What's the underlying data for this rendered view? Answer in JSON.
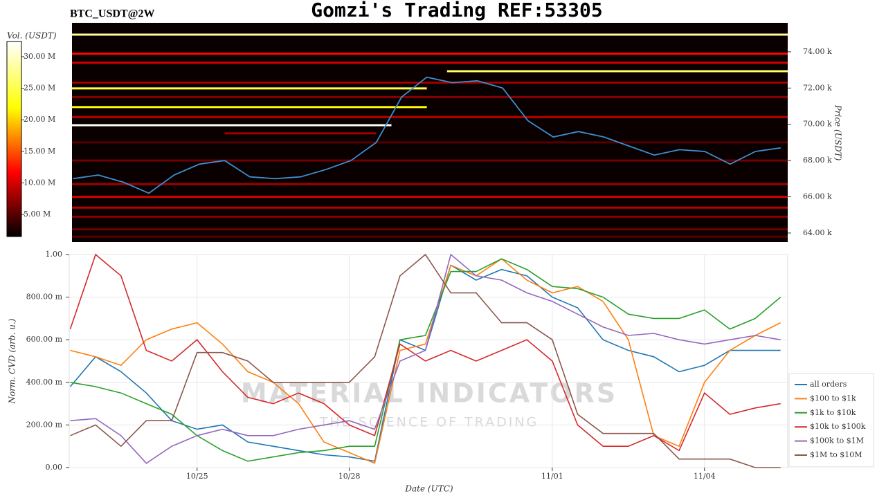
{
  "chart_data": [
    {
      "type": "heatmap",
      "title": "Gomzi's Trading REF:53305",
      "subtitle": "BTC_USDT@2W",
      "y_label": "Price (USDT)",
      "colorbar_label": "Vol. (USDT)",
      "xlim": [
        22.48,
        36.64
      ],
      "ylim": [
        63500,
        75600
      ],
      "yticks": [
        {
          "value": 64000,
          "label": "64.00 k"
        },
        {
          "value": 66000,
          "label": "66.00 k"
        },
        {
          "value": 68000,
          "label": "68.00 k"
        },
        {
          "value": 70000,
          "label": "70.00 k"
        },
        {
          "value": 72000,
          "label": "72.00 k"
        },
        {
          "value": 74000,
          "label": "74.00 k"
        }
      ],
      "clim": [
        1500000,
        32400000
      ],
      "cticks": [
        {
          "value": 5000000,
          "label": "5.00 M"
        },
        {
          "value": 10000000,
          "label": "10.00 M"
        },
        {
          "value": 15000000,
          "label": "15.00 M"
        },
        {
          "value": 20000000,
          "label": "20.00 M"
        },
        {
          "value": 25000000,
          "label": "25.00 M"
        },
        {
          "value": 30000000,
          "label": "30.00 M"
        }
      ],
      "levels": [
        {
          "price": 74950,
          "volume": 28000000,
          "start": 22.48,
          "end": 36.64
        },
        {
          "price": 73900,
          "volume": 12000000,
          "start": 22.48,
          "end": 36.64
        },
        {
          "price": 73400,
          "volume": 10000000,
          "start": 22.48,
          "end": 36.64
        },
        {
          "price": 72930,
          "volume": 26000000,
          "start": 29.9,
          "end": 36.64
        },
        {
          "price": 72300,
          "volume": 8000000,
          "start": 22.48,
          "end": 36.64
        },
        {
          "price": 71980,
          "volume": 25000000,
          "start": 22.48,
          "end": 29.5
        },
        {
          "price": 71500,
          "volume": 7000000,
          "start": 22.48,
          "end": 36.64
        },
        {
          "price": 70950,
          "volume": 22000000,
          "start": 22.48,
          "end": 29.5
        },
        {
          "price": 70400,
          "volume": 9000000,
          "start": 22.48,
          "end": 36.64
        },
        {
          "price": 69950,
          "volume": 32000000,
          "start": 22.48,
          "end": 28.8
        },
        {
          "price": 69500,
          "volume": 8000000,
          "start": 25.5,
          "end": 28.5
        },
        {
          "price": 69000,
          "volume": 5000000,
          "start": 22.48,
          "end": 36.64
        },
        {
          "price": 68000,
          "volume": 6000000,
          "start": 22.48,
          "end": 36.64
        },
        {
          "price": 66700,
          "volume": 8000000,
          "start": 22.48,
          "end": 36.64
        },
        {
          "price": 66000,
          "volume": 10000000,
          "start": 22.48,
          "end": 36.64
        },
        {
          "price": 65400,
          "volume": 9000000,
          "start": 22.48,
          "end": 36.64
        },
        {
          "price": 64900,
          "volume": 7000000,
          "start": 22.48,
          "end": 36.64
        },
        {
          "price": 64200,
          "volume": 6000000,
          "start": 22.48,
          "end": 36.64
        },
        {
          "price": 63800,
          "volume": 5000000,
          "start": 22.48,
          "end": 36.64
        }
      ],
      "price_color": "#3a8fd0",
      "x": [
        22.5,
        23,
        23.5,
        24,
        24.5,
        25,
        25.5,
        26,
        26.5,
        27,
        27.5,
        28,
        28.5,
        29,
        29.5,
        30,
        30.5,
        31,
        31.5,
        32,
        32.5,
        33,
        33.5,
        34,
        34.5,
        35,
        35.5,
        36,
        36.5
      ],
      "price": [
        67000,
        67200,
        66800,
        66200,
        67200,
        67800,
        68000,
        67100,
        67000,
        67100,
        67500,
        68000,
        69000,
        71500,
        72600,
        72300,
        72400,
        72000,
        70200,
        69300,
        69600,
        69300,
        68800,
        68300,
        68600,
        68500,
        67800,
        68500,
        68700
      ]
    },
    {
      "type": "line",
      "x_label": "Date (UTC)",
      "y_label": "Norm. CVD (arb. u.)",
      "watermark": "MATERIAL INDICATORS",
      "watermark_sub": "THE SCIENCE OF TRADING",
      "xlim": [
        22.48,
        36.64
      ],
      "ylim": [
        0,
        1
      ],
      "grid": true,
      "xticks": [
        {
          "value": 25,
          "label": "10/25"
        },
        {
          "value": 28,
          "label": "10/28"
        },
        {
          "value": 32,
          "label": "11/01"
        },
        {
          "value": 35,
          "label": "11/04"
        }
      ],
      "yticks": [
        {
          "value": 0,
          "label": "0.00"
        },
        {
          "value": 0.2,
          "label": "200.00 m"
        },
        {
          "value": 0.4,
          "label": "400.00 m"
        },
        {
          "value": 0.6,
          "label": "600.00 m"
        },
        {
          "value": 0.8,
          "label": "800.00 m"
        },
        {
          "value": 1,
          "label": "1.00"
        }
      ],
      "x": [
        22.5,
        23,
        23.5,
        24,
        24.5,
        25,
        25.5,
        26,
        26.5,
        27,
        27.5,
        28,
        28.5,
        29,
        29.5,
        30,
        30.5,
        31,
        31.5,
        32,
        32.5,
        33,
        33.5,
        34,
        34.5,
        35,
        35.5,
        36,
        36.5
      ],
      "series": [
        {
          "name": "all orders",
          "color": "#1f77b4",
          "values": [
            0.38,
            0.52,
            0.45,
            0.35,
            0.22,
            0.18,
            0.2,
            0.12,
            0.1,
            0.08,
            0.06,
            0.05,
            0.03,
            0.6,
            0.55,
            0.95,
            0.88,
            0.93,
            0.9,
            0.8,
            0.75,
            0.6,
            0.55,
            0.52,
            0.45,
            0.48,
            0.55,
            0.55,
            0.55
          ]
        },
        {
          "name": "$100 to $1k",
          "color": "#ff7f0e",
          "values": [
            0.55,
            0.52,
            0.48,
            0.6,
            0.65,
            0.68,
            0.58,
            0.45,
            0.4,
            0.3,
            0.12,
            0.07,
            0.02,
            0.55,
            0.58,
            0.95,
            0.9,
            0.98,
            0.88,
            0.82,
            0.85,
            0.78,
            0.6,
            0.15,
            0.1,
            0.4,
            0.55,
            0.62,
            0.68
          ]
        },
        {
          "name": "$1k to $10k",
          "color": "#2ca02c",
          "values": [
            0.4,
            0.38,
            0.35,
            0.3,
            0.25,
            0.15,
            0.08,
            0.03,
            0.05,
            0.07,
            0.08,
            0.1,
            0.1,
            0.6,
            0.62,
            0.92,
            0.92,
            0.98,
            0.93,
            0.85,
            0.84,
            0.8,
            0.72,
            0.7,
            0.7,
            0.74,
            0.65,
            0.7,
            0.8
          ]
        },
        {
          "name": "$10k to $100k",
          "color": "#d62728",
          "values": [
            0.65,
            1.0,
            0.9,
            0.55,
            0.5,
            0.6,
            0.45,
            0.33,
            0.3,
            0.35,
            0.3,
            0.2,
            0.15,
            0.58,
            0.5,
            0.55,
            0.5,
            0.55,
            0.6,
            0.5,
            0.2,
            0.1,
            0.1,
            0.15,
            0.08,
            0.35,
            0.25,
            0.28,
            0.3
          ]
        },
        {
          "name": "$100k to $1M",
          "color": "#9467bd",
          "values": [
            0.22,
            0.23,
            0.15,
            0.02,
            0.1,
            0.15,
            0.18,
            0.15,
            0.15,
            0.18,
            0.2,
            0.22,
            0.18,
            0.5,
            0.55,
            1.0,
            0.9,
            0.88,
            0.82,
            0.78,
            0.72,
            0.66,
            0.62,
            0.63,
            0.6,
            0.58,
            0.6,
            0.62,
            0.6
          ]
        },
        {
          "name": "$1M to $10M",
          "color": "#8c564b",
          "values": [
            0.15,
            0.2,
            0.1,
            0.22,
            0.22,
            0.54,
            0.54,
            0.5,
            0.4,
            0.4,
            0.4,
            0.4,
            0.52,
            0.9,
            1.0,
            0.82,
            0.82,
            0.68,
            0.68,
            0.6,
            0.25,
            0.16,
            0.16,
            0.16,
            0.04,
            0.04,
            0.04,
            0.0,
            0.0
          ]
        }
      ]
    }
  ]
}
